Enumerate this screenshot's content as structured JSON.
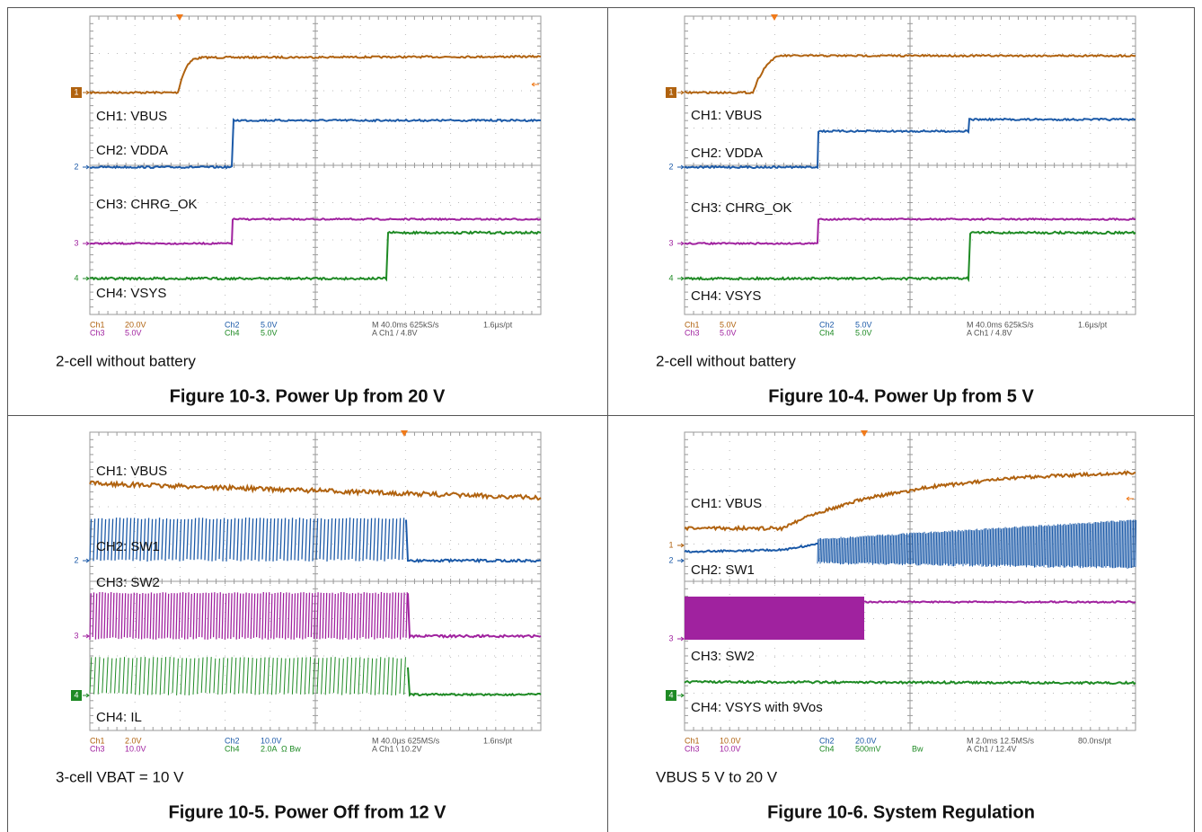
{
  "figures": [
    {
      "channel_labels": [
        "CH1: VBUS",
        "CH2: VDDA",
        "CH3: CHRG_OK",
        "CH4: VSYS"
      ],
      "markers": [
        "1",
        "2",
        "3",
        "4"
      ],
      "readouts": [
        [
          "Ch1",
          "20.0V",
          "Ch2",
          "5.0V",
          "M 40.0ms 625kS/s",
          "1.6µs/pt"
        ],
        [
          "Ch3",
          "5.0V",
          "Ch4",
          "5.0V",
          "A  Ch1  / 4.8V"
        ]
      ],
      "note": "2-cell without battery",
      "caption": "Figure 10-3. Power Up from 20 V"
    },
    {
      "channel_labels": [
        "CH1: VBUS",
        "CH2: VDDA",
        "CH3: CHRG_OK",
        "CH4: VSYS"
      ],
      "markers": [
        "1",
        "2",
        "3",
        "4"
      ],
      "readouts": [
        [
          "Ch1",
          "5.0V",
          "Ch2",
          "5.0V",
          "M 40.0ms 625kS/s",
          "1.6µs/pt"
        ],
        [
          "Ch3",
          "5.0V",
          "Ch4",
          "5.0V",
          "A  Ch1  / 4.8V"
        ]
      ],
      "note": "2-cell without battery",
      "caption": "Figure 10-4. Power Up from 5 V"
    },
    {
      "channel_labels": [
        "CH1: VBUS",
        "CH2: SW1",
        "CH3: SW2",
        "CH4: IL"
      ],
      "markers": [
        "2",
        "3",
        "4"
      ],
      "readouts": [
        [
          "Ch1",
          "2.0V",
          "Ch2",
          "10.0V",
          "M 40.0µs 625MS/s",
          "1.6ns/pt"
        ],
        [
          "Ch3",
          "10.0V",
          "Ch4",
          "2.0A",
          "Ω Bw",
          "A  Ch1  \\ 10.2V"
        ]
      ],
      "note": "3-cell VBAT = 10 V",
      "caption": "Figure 10-5. Power Off from 12 V"
    },
    {
      "channel_labels": [
        "CH1: VBUS",
        "CH2: SW1",
        "CH3: SW2",
        "CH4: VSYS with 9Vos"
      ],
      "markers": [
        "1",
        "2",
        "3",
        "4"
      ],
      "readouts": [
        [
          "Ch1",
          "10.0V",
          "Ch2",
          "20.0V",
          "M 2.0ms 12.5MS/s",
          "80.0ns/pt"
        ],
        [
          "Ch3",
          "10.0V",
          "Ch4",
          "500mV",
          "Bw",
          "A  Ch1  / 12.4V"
        ]
      ],
      "note": "VBUS 5 V to 20 V",
      "caption": "Figure 10-6. System Regulation"
    }
  ]
}
